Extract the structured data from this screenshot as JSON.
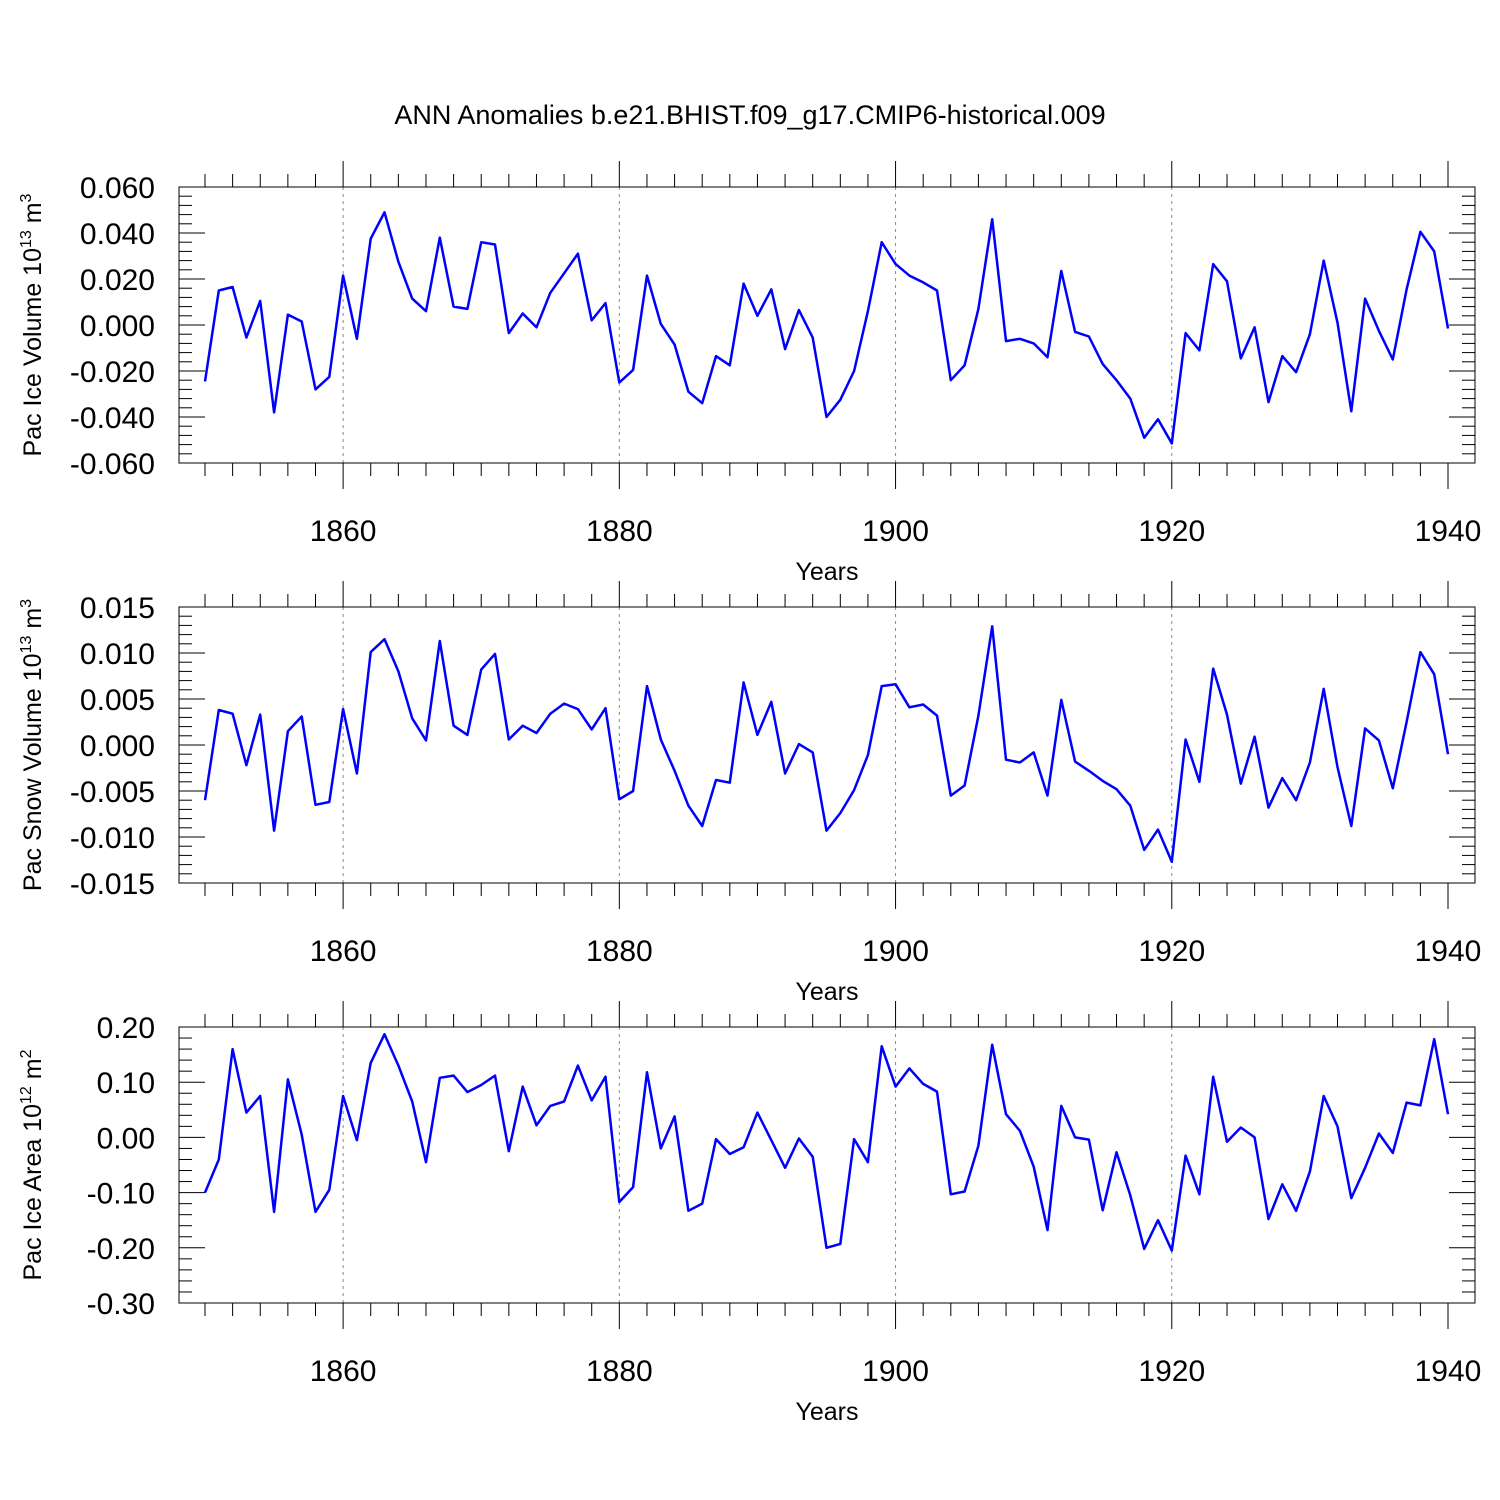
{
  "title": "ANN Anomalies b.e21.BHIST.f09_g17.CMIP6-historical.009",
  "colors": {
    "line": "#0000ff",
    "axis": "#000000",
    "grid": "#888888"
  },
  "chart_data": [
    {
      "type": "line",
      "name": "pac-ice-volume",
      "ylabel": {
        "text": "Pac Ice Volume 10",
        "exp": "13",
        "unit": "m",
        "unit_exp": "3"
      },
      "xlabel": "Years",
      "xlim": [
        1850,
        1940
      ],
      "ylim": [
        -0.06,
        0.06
      ],
      "x_ticks": [
        1860,
        1880,
        1900,
        1920,
        1940
      ],
      "x_tick_labels": [
        "1860",
        "1880",
        "1900",
        "1920",
        "1940"
      ],
      "y_ticks": [
        -0.06,
        -0.04,
        -0.02,
        0.0,
        0.02,
        0.04,
        0.06
      ],
      "y_tick_labels": [
        "-0.060",
        "-0.040",
        "-0.020",
        "0.000",
        "0.020",
        "0.040",
        "0.060"
      ],
      "grid_x": [
        1860,
        1880,
        1900,
        1920
      ],
      "series": [
        {
          "name": "Pac Ice Volume",
          "start_year": 1850,
          "values": [
            -0.0245,
            0.015,
            0.0165,
            -0.0055,
            0.0105,
            -0.038,
            0.0045,
            0.0015,
            -0.028,
            -0.0225,
            0.0215,
            -0.006,
            0.0375,
            0.049,
            0.0275,
            0.0115,
            0.006,
            0.038,
            0.008,
            0.007,
            0.036,
            0.035,
            -0.0035,
            0.005,
            -0.001,
            0.014,
            0.0225,
            0.031,
            0.002,
            0.0095,
            -0.025,
            -0.0195,
            0.0215,
            0.0005,
            -0.0085,
            -0.029,
            -0.034,
            -0.0135,
            -0.0175,
            0.018,
            0.004,
            0.0155,
            -0.0105,
            0.0065,
            -0.0055,
            -0.04,
            -0.0325,
            -0.02,
            0.006,
            0.036,
            0.0265,
            0.0215,
            0.0185,
            0.015,
            -0.024,
            -0.0175,
            0.007,
            0.046,
            -0.007,
            -0.006,
            -0.008,
            -0.014,
            0.0235,
            -0.003,
            -0.005,
            -0.017,
            -0.024,
            -0.032,
            -0.049,
            -0.041,
            -0.0515,
            -0.0035,
            -0.011,
            0.0265,
            0.019,
            -0.0145,
            -0.001,
            -0.0335,
            -0.0135,
            -0.0205,
            -0.004,
            0.028,
            0.001,
            -0.0375,
            0.0115,
            -0.0025,
            -0.015,
            0.0155,
            0.0405,
            0.032,
            -0.0015
          ]
        }
      ]
    },
    {
      "type": "line",
      "name": "pac-snow-volume",
      "ylabel": {
        "text": "Pac Snow Volume 10",
        "exp": "13",
        "unit": "m",
        "unit_exp": "3"
      },
      "xlabel": "Years",
      "xlim": [
        1850,
        1940
      ],
      "ylim": [
        -0.015,
        0.015
      ],
      "x_ticks": [
        1860,
        1880,
        1900,
        1920,
        1940
      ],
      "x_tick_labels": [
        "1860",
        "1880",
        "1900",
        "1920",
        "1940"
      ],
      "y_ticks": [
        -0.015,
        -0.01,
        -0.005,
        0.0,
        0.005,
        0.01,
        0.015
      ],
      "y_tick_labels": [
        "-0.015",
        "-0.010",
        "-0.005",
        "0.000",
        "0.005",
        "0.010",
        "0.015"
      ],
      "grid_x": [
        1860,
        1880,
        1900,
        1920
      ],
      "series": [
        {
          "name": "Pac Snow Volume",
          "start_year": 1850,
          "values": [
            -0.006,
            0.0038,
            0.0034,
            -0.0022,
            0.0033,
            -0.0093,
            0.0015,
            0.0031,
            -0.0065,
            -0.0062,
            0.0039,
            -0.0031,
            0.0101,
            0.0115,
            0.008,
            0.0029,
            0.0005,
            0.0113,
            0.0021,
            0.0011,
            0.0082,
            0.0099,
            0.0006,
            0.0021,
            0.0013,
            0.0034,
            0.0045,
            0.0039,
            0.0017,
            0.004,
            -0.0059,
            -0.005,
            0.0064,
            0.0006,
            -0.0028,
            -0.0066,
            -0.0088,
            -0.0038,
            -0.0041,
            0.0068,
            0.0011,
            0.0047,
            -0.0031,
            0.0001,
            -0.0008,
            -0.0093,
            -0.0074,
            -0.0049,
            -0.0011,
            0.0064,
            0.0066,
            0.0041,
            0.0044,
            0.0032,
            -0.0055,
            -0.0044,
            0.0032,
            0.0129,
            -0.0016,
            -0.0019,
            -0.0008,
            -0.0055,
            0.0049,
            -0.0018,
            -0.0028,
            -0.0039,
            -0.0048,
            -0.0066,
            -0.0114,
            -0.0092,
            -0.0127,
            0.0006,
            -0.004,
            0.0083,
            0.0033,
            -0.0042,
            0.0009,
            -0.0068,
            -0.0036,
            -0.006,
            -0.0019,
            0.0061,
            -0.0024,
            -0.0088,
            0.0018,
            0.0005,
            -0.0047,
            0.0025,
            0.0101,
            0.0077,
            -0.001
          ]
        }
      ]
    },
    {
      "type": "line",
      "name": "pac-ice-area",
      "ylabel": {
        "text": "Pac Ice Area 10",
        "exp": "12",
        "unit": "m",
        "unit_exp": "2"
      },
      "xlabel": "Years",
      "xlim": [
        1850,
        1940
      ],
      "ylim": [
        -0.3,
        0.2
      ],
      "x_ticks": [
        1860,
        1880,
        1900,
        1920,
        1940
      ],
      "x_tick_labels": [
        "1860",
        "1880",
        "1900",
        "1920",
        "1940"
      ],
      "y_ticks": [
        -0.3,
        -0.2,
        -0.1,
        0.0,
        0.1,
        0.2
      ],
      "y_tick_labels": [
        "-0.30",
        "-0.20",
        "-0.10",
        "0.00",
        "0.10",
        "0.20"
      ],
      "grid_x": [
        1860,
        1880,
        1900,
        1920
      ],
      "series": [
        {
          "name": "Pac Ice Area",
          "start_year": 1850,
          "values": [
            -0.1,
            -0.04,
            0.16,
            0.045,
            0.075,
            -0.135,
            0.105,
            0.005,
            -0.135,
            -0.095,
            0.075,
            -0.005,
            0.135,
            0.187,
            0.13,
            0.065,
            -0.045,
            0.108,
            0.112,
            0.082,
            0.095,
            0.112,
            -0.025,
            0.092,
            0.022,
            0.057,
            0.065,
            0.13,
            0.067,
            0.11,
            -0.117,
            -0.09,
            0.118,
            -0.02,
            0.038,
            -0.133,
            -0.12,
            -0.003,
            -0.03,
            -0.018,
            0.045,
            -0.005,
            -0.055,
            -0.002,
            -0.035,
            -0.2,
            -0.193,
            -0.003,
            -0.045,
            0.165,
            0.092,
            0.125,
            0.097,
            0.083,
            -0.103,
            -0.098,
            -0.015,
            0.168,
            0.042,
            0.012,
            -0.053,
            -0.168,
            0.057,
            0.0,
            -0.004,
            -0.132,
            -0.027,
            -0.105,
            -0.202,
            -0.15,
            -0.205,
            -0.033,
            -0.103,
            0.11,
            -0.008,
            0.018,
            0.0,
            -0.148,
            -0.085,
            -0.133,
            -0.062,
            0.075,
            0.02,
            -0.11,
            -0.055,
            0.007,
            -0.028,
            0.063,
            0.058,
            0.178,
            0.042
          ]
        }
      ]
    }
  ]
}
